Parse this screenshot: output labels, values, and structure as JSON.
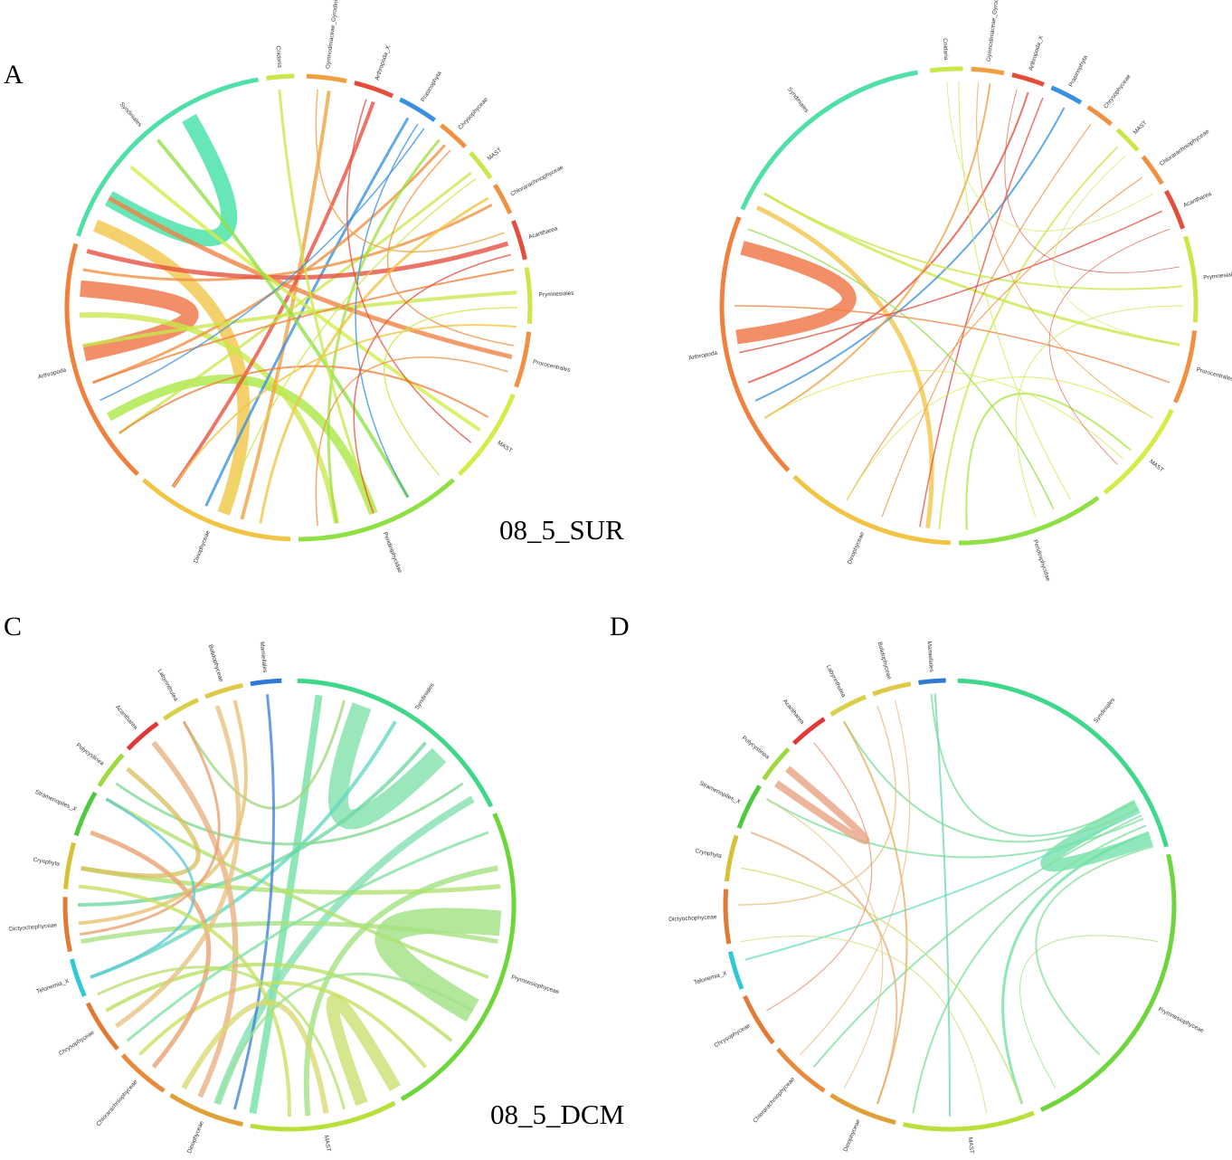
{
  "labels": {
    "panel_a": "A",
    "panel_c": "C",
    "panel_d": "D",
    "sample_top": "08_5_SUR",
    "sample_bottom": "08_5_DCM"
  },
  "panels": [
    {
      "id": "A",
      "sectors": [
        {
          "name": "Cnidaria",
          "start": -8,
          "end": -1,
          "color": "#c8e84a"
        },
        {
          "name": "Gymnodiniaceae_Gyrodinium",
          "start": 2,
          "end": 12,
          "color": "#f0a040"
        },
        {
          "name": "Arthropoda_X",
          "start": 14,
          "end": 24,
          "color": "#e54d3b"
        },
        {
          "name": "Prasinophyta",
          "start": 26,
          "end": 36,
          "color": "#3a8fe0"
        },
        {
          "name": "Chrysophyceae",
          "start": 38,
          "end": 46,
          "color": "#f09040"
        },
        {
          "name": "MAST",
          "start": 48,
          "end": 56,
          "color": "#c8e84a"
        },
        {
          "name": "Chlorarachniophyceae",
          "start": 58,
          "end": 66,
          "color": "#f09040"
        },
        {
          "name": "Acantharea",
          "start": 68,
          "end": 78,
          "color": "#e54d3b"
        },
        {
          "name": "Prymnesiales",
          "start": 80,
          "end": 94,
          "color": "#c8e84a"
        },
        {
          "name": "Prorocentrales",
          "start": 96,
          "end": 110,
          "color": "#f09040"
        },
        {
          "name": "MAST",
          "start": 112,
          "end": 136,
          "color": "#d4ec46"
        },
        {
          "name": "Peridiniphycidae",
          "start": 138,
          "end": 180,
          "color": "#8ee044"
        },
        {
          "name": "Dinophyceae",
          "start": 182,
          "end": 222,
          "color": "#f2c444"
        },
        {
          "name": "Arthropoda",
          "start": 224,
          "end": 286,
          "color": "#f0803e"
        },
        {
          "name": "Syndiniales",
          "start": 288,
          "end": 350,
          "color": "#4ee0a6"
        }
      ],
      "chords": [
        {
          "from": 300,
          "to": 330,
          "w": 18,
          "color": "#3ee0a2"
        },
        {
          "from": 258,
          "to": 275,
          "w": 18,
          "color": "#f0703e"
        },
        {
          "from": 292,
          "to": 200,
          "w": 14,
          "color": "#f2c444"
        },
        {
          "from": 240,
          "to": 160,
          "w": 10,
          "color": "#a8e840"
        },
        {
          "from": 268,
          "to": 170,
          "w": 6,
          "color": "#c8e84a"
        },
        {
          "from": 8,
          "to": 195,
          "w": 4,
          "color": "#f0a040"
        },
        {
          "from": 20,
          "to": 215,
          "w": 4,
          "color": "#e54d3b"
        },
        {
          "from": 30,
          "to": 205,
          "w": 3,
          "color": "#3a8fe0"
        },
        {
          "from": 42,
          "to": 250,
          "w": 3,
          "color": "#f09040"
        },
        {
          "from": 52,
          "to": 235,
          "w": 3,
          "color": "#c8e84a"
        },
        {
          "from": 62,
          "to": 280,
          "w": 3,
          "color": "#f09040"
        },
        {
          "from": 73,
          "to": 285,
          "w": 5,
          "color": "#e54d3b"
        },
        {
          "from": 86,
          "to": 260,
          "w": 4,
          "color": "#c8e84a"
        },
        {
          "from": 103,
          "to": 300,
          "w": 5,
          "color": "#f08040"
        },
        {
          "from": 124,
          "to": 310,
          "w": 4,
          "color": "#d4ec46"
        },
        {
          "from": 150,
          "to": 320,
          "w": 4,
          "color": "#8ee044"
        },
        {
          "from": 170,
          "to": 40,
          "w": 3,
          "color": "#a0e040"
        },
        {
          "from": 190,
          "to": 60,
          "w": 3,
          "color": "#f2c444"
        },
        {
          "from": 215,
          "to": 95,
          "w": 2,
          "color": "#f2c444"
        },
        {
          "from": 235,
          "to": 120,
          "w": 2,
          "color": "#f0803e"
        },
        {
          "from": 250,
          "to": 80,
          "w": 2,
          "color": "#f0803e"
        },
        {
          "from": -5,
          "to": 160,
          "w": 3,
          "color": "#c8e84a"
        },
        {
          "from": 33,
          "to": 150,
          "w": 1.5,
          "color": "#3a8fe0"
        },
        {
          "from": 35,
          "to": 245,
          "w": 1.5,
          "color": "#3a8fe0"
        },
        {
          "from": 18,
          "to": 128,
          "w": 1.5,
          "color": "#e54d3b"
        },
        {
          "from": 44,
          "to": 100,
          "w": 1.5,
          "color": "#f09040"
        },
        {
          "from": 5,
          "to": 70,
          "w": 1.5,
          "color": "#f0a040"
        },
        {
          "from": 54,
          "to": 200,
          "w": 1.5,
          "color": "#c8e84a"
        },
        {
          "from": 90,
          "to": 140,
          "w": 1.5,
          "color": "#c8e84a"
        },
        {
          "from": 107,
          "to": 175,
          "w": 1.5,
          "color": "#f09040"
        },
        {
          "from": 76,
          "to": 160,
          "w": 1.5,
          "color": "#e54d3b"
        }
      ]
    },
    {
      "id": "B",
      "sectors": [
        {
          "name": "Cnidaria",
          "start": -7,
          "end": 1,
          "color": "#c8e84a"
        },
        {
          "name": "Gymnodiniaceae_Gyrodinium",
          "start": 3,
          "end": 11,
          "color": "#f0a040"
        },
        {
          "name": "Arthropoda_X",
          "start": 13,
          "end": 21,
          "color": "#e54d3b"
        },
        {
          "name": "Prasinophyta",
          "start": 23,
          "end": 31,
          "color": "#3a8fe0"
        },
        {
          "name": "Chrysophyceae",
          "start": 33,
          "end": 40,
          "color": "#f09040"
        },
        {
          "name": "MAST",
          "start": 42,
          "end": 49,
          "color": "#c8e84a"
        },
        {
          "name": "Chlorarachniophyceae",
          "start": 51,
          "end": 59,
          "color": "#f09040"
        },
        {
          "name": "Acantharea",
          "start": 61,
          "end": 71,
          "color": "#e54d3b"
        },
        {
          "name": "Prymnesiales",
          "start": 73,
          "end": 94,
          "color": "#c8e84a"
        },
        {
          "name": "Prorocentrales",
          "start": 96,
          "end": 114,
          "color": "#f09040"
        },
        {
          "name": "MAST",
          "start": 116,
          "end": 142,
          "color": "#d4ec46"
        },
        {
          "name": "Peridiniphycidae",
          "start": 144,
          "end": 180,
          "color": "#8ee044"
        },
        {
          "name": "Dinophyceae",
          "start": 182,
          "end": 224,
          "color": "#f2c444"
        },
        {
          "name": "Arthropoda",
          "start": 226,
          "end": 292,
          "color": "#f0803e"
        },
        {
          "name": "Syndiniales",
          "start": 294,
          "end": 350,
          "color": "#4ee0a6"
        }
      ],
      "chords": [
        {
          "from": 262,
          "to": 285,
          "w": 16,
          "color": "#f0703e"
        },
        {
          "from": 296,
          "to": 188,
          "w": 5,
          "color": "#f2c444"
        },
        {
          "from": 300,
          "to": 100,
          "w": 3,
          "color": "#c8e84a"
        },
        {
          "from": 245,
          "to": 28,
          "w": 2,
          "color": "#3a8fe0"
        },
        {
          "from": 250,
          "to": 18,
          "w": 2,
          "color": "#e54d3b"
        },
        {
          "from": 240,
          "to": 8,
          "w": 2,
          "color": "#f0a040"
        },
        {
          "from": 185,
          "to": 45,
          "w": 2,
          "color": "#c8e84a"
        },
        {
          "from": 190,
          "to": 22,
          "w": 1.5,
          "color": "#e54d3b"
        },
        {
          "from": 178,
          "to": 130,
          "w": 2,
          "color": "#a8e840"
        },
        {
          "from": 155,
          "to": 290,
          "w": 1.5,
          "color": "#8ee044"
        },
        {
          "from": 110,
          "to": 270,
          "w": 1.5,
          "color": "#f08040"
        },
        {
          "from": 85,
          "to": 300,
          "w": 2,
          "color": "#c8e84a"
        },
        {
          "from": 65,
          "to": 258,
          "w": 1.5,
          "color": "#e54d3b"
        },
        {
          "from": 55,
          "to": 210,
          "w": 1.2,
          "color": "#f09040"
        },
        {
          "from": 36,
          "to": 200,
          "w": 1.2,
          "color": "#f09040"
        },
        {
          "from": 0,
          "to": 150,
          "w": 1,
          "color": "#c8e84a"
        },
        {
          "from": 5,
          "to": 120,
          "w": 1,
          "color": "#f0a040"
        },
        {
          "from": 120,
          "to": 210,
          "w": 1,
          "color": "#d4ec46"
        },
        {
          "from": 90,
          "to": 160,
          "w": 1,
          "color": "#c8e84a"
        },
        {
          "from": 133,
          "to": 240,
          "w": 1,
          "color": "#d4ec46"
        },
        {
          "from": 70,
          "to": 135,
          "w": 0.8,
          "color": "#e54d3b"
        },
        {
          "from": 15,
          "to": 80,
          "w": 0.8,
          "color": "#e54d3b"
        },
        {
          "from": 48,
          "to": 100,
          "w": 0.8,
          "color": "#c8e84a"
        },
        {
          "from": -3,
          "to": 60,
          "w": 0.8,
          "color": "#c8e84a"
        }
      ]
    },
    {
      "id": "C",
      "sectors": [
        {
          "name": "Syndiniales",
          "start": 2,
          "end": 64,
          "color": "#3fd88a"
        },
        {
          "name": "Prymnesiophyceae",
          "start": 66,
          "end": 150,
          "color": "#6ed63a"
        },
        {
          "name": "MAST",
          "start": 152,
          "end": 190,
          "color": "#b8e03a"
        },
        {
          "name": "Dinophyceae",
          "start": 192,
          "end": 212,
          "color": "#e0a038"
        },
        {
          "name": "Chlorarachniophyceae",
          "start": 214,
          "end": 228,
          "color": "#e88a3a"
        },
        {
          "name": "Chrysophyceae",
          "start": 230,
          "end": 244,
          "color": "#e07a36"
        },
        {
          "name": "Telonemia_X",
          "start": 246,
          "end": 256,
          "color": "#2ec8d8"
        },
        {
          "name": "Dictyochophyceae",
          "start": 258,
          "end": 272,
          "color": "#e07a36"
        },
        {
          "name": "Cryophyta",
          "start": 274,
          "end": 286,
          "color": "#d8c038"
        },
        {
          "name": "Stramenopiles_X",
          "start": 288,
          "end": 300,
          "color": "#50c840"
        },
        {
          "name": "Polycystinea",
          "start": 302,
          "end": 312,
          "color": "#a0d840"
        },
        {
          "name": "Acantharea",
          "start": 314,
          "end": 324,
          "color": "#e03838"
        },
        {
          "name": "Labyrinthulea",
          "start": 326,
          "end": 336,
          "color": "#d8d048"
        },
        {
          "name": "Bolidophyceae",
          "start": 338,
          "end": 348,
          "color": "#e0c848"
        },
        {
          "name": "Mamiellales",
          "start": 350,
          "end": 358,
          "color": "#2e78d8"
        }
      ],
      "chords": [
        {
          "from": 20,
          "to": 45,
          "w": 22,
          "color": "#7ee0a8"
        },
        {
          "from": 95,
          "to": 120,
          "w": 28,
          "color": "#9ee080"
        },
        {
          "from": 150,
          "to": 160,
          "w": 14,
          "color": "#c8e070"
        },
        {
          "from": 8,
          "to": 190,
          "w": 8,
          "color": "#70e0a0"
        },
        {
          "from": 60,
          "to": 200,
          "w": 8,
          "color": "#80e0b0"
        },
        {
          "from": 80,
          "to": 175,
          "w": 6,
          "color": "#a0e080"
        },
        {
          "from": 100,
          "to": 260,
          "w": 5,
          "color": "#a8e080"
        },
        {
          "from": 85,
          "to": 280,
          "w": 5,
          "color": "#b0e070"
        },
        {
          "from": 110,
          "to": 300,
          "w": 4,
          "color": "#b0e070"
        },
        {
          "from": 130,
          "to": 240,
          "w": 4,
          "color": "#b8e060"
        },
        {
          "from": 140,
          "to": 225,
          "w": 4,
          "color": "#c8e060"
        },
        {
          "from": 30,
          "to": 250,
          "w": 4,
          "color": "#60d8c0"
        },
        {
          "from": 40,
          "to": 270,
          "w": 4,
          "color": "#70d8a0"
        },
        {
          "from": 55,
          "to": 305,
          "w": 3,
          "color": "#80d890"
        },
        {
          "from": 15,
          "to": 330,
          "w": 3,
          "color": "#a0d880"
        },
        {
          "from": 205,
          "to": 320,
          "w": 6,
          "color": "#e8b080"
        },
        {
          "from": 220,
          "to": 290,
          "w": 5,
          "color": "#e8a070"
        },
        {
          "from": 235,
          "to": 340,
          "w": 5,
          "color": "#e8c080"
        },
        {
          "from": 265,
          "to": 345,
          "w": 4,
          "color": "#e8c070"
        },
        {
          "from": 280,
          "to": 310,
          "w": 5,
          "color": "#d8c060"
        },
        {
          "from": 262,
          "to": 330,
          "w": 3,
          "color": "#e8a070"
        },
        {
          "from": 250,
          "to": 300,
          "w": 3,
          "color": "#60c8d8"
        },
        {
          "from": 354,
          "to": 195,
          "w": 3,
          "color": "#4080d8"
        },
        {
          "from": 170,
          "to": 210,
          "w": 6,
          "color": "#d8d870"
        },
        {
          "from": 180,
          "to": 275,
          "w": 4,
          "color": "#c8e060"
        },
        {
          "from": 165,
          "to": 245,
          "w": 3,
          "color": "#b8e070"
        },
        {
          "from": 120,
          "to": 200,
          "w": 3,
          "color": "#a0e090"
        },
        {
          "from": 70,
          "to": 230,
          "w": 3,
          "color": "#80e0a0"
        }
      ]
    },
    {
      "id": "D",
      "sectors": [
        {
          "name": "Syndiniales",
          "start": 2,
          "end": 75,
          "color": "#3fd88a"
        },
        {
          "name": "Prymnesiophyceae",
          "start": 77,
          "end": 156,
          "color": "#6ed63a"
        },
        {
          "name": "MAST",
          "start": 158,
          "end": 192,
          "color": "#b8e03a"
        },
        {
          "name": "Dinophyceae",
          "start": 194,
          "end": 212,
          "color": "#e0a038"
        },
        {
          "name": "Chlorarachniophyceae",
          "start": 214,
          "end": 230,
          "color": "#e88a3a"
        },
        {
          "name": "Chrysophyceae",
          "start": 232,
          "end": 246,
          "color": "#e07a36"
        },
        {
          "name": "Telonemia_X",
          "start": 248,
          "end": 258,
          "color": "#2ec8d8"
        },
        {
          "name": "Dictyochophyceae",
          "start": 260,
          "end": 274,
          "color": "#e07a36"
        },
        {
          "name": "Cryophyta",
          "start": 276,
          "end": 288,
          "color": "#d8c038"
        },
        {
          "name": "Stramenopiles_X",
          "start": 290,
          "end": 302,
          "color": "#50c840"
        },
        {
          "name": "Polycystinea",
          "start": 304,
          "end": 314,
          "color": "#a0d840"
        },
        {
          "name": "Acantharea",
          "start": 316,
          "end": 326,
          "color": "#e03838"
        },
        {
          "name": "Labyrinthulea",
          "start": 328,
          "end": 338,
          "color": "#d8d048"
        },
        {
          "name": "Bolidophyceae",
          "start": 340,
          "end": 350,
          "color": "#e0c848"
        },
        {
          "name": "Mamiellales",
          "start": 352,
          "end": 359,
          "color": "#2e78d8"
        }
      ],
      "chords": [
        {
          "from": 72,
          "to": 62,
          "w": 14,
          "color": "#70e0a8"
        },
        {
          "from": 70,
          "to": 160,
          "w": 3,
          "color": "#70e0a0"
        },
        {
          "from": 68,
          "to": 190,
          "w": 2,
          "color": "#80e0a0"
        },
        {
          "from": 65,
          "to": 220,
          "w": 2,
          "color": "#80e0a0"
        },
        {
          "from": 64,
          "to": 255,
          "w": 2,
          "color": "#70e0c0"
        },
        {
          "from": 66,
          "to": 300,
          "w": 2,
          "color": "#80e0a0"
        },
        {
          "from": 63,
          "to": 330,
          "w": 2,
          "color": "#80e0a0"
        },
        {
          "from": 61,
          "to": 355,
          "w": 2,
          "color": "#80e0a0"
        },
        {
          "from": 74,
          "to": 135,
          "w": 2,
          "color": "#90e0a0"
        },
        {
          "from": 305,
          "to": 310,
          "w": 8,
          "color": "#e8a080"
        },
        {
          "from": 290,
          "to": 200,
          "w": 2,
          "color": "#e8b080"
        },
        {
          "from": 200,
          "to": 330,
          "w": 2,
          "color": "#e8b060"
        },
        {
          "from": 270,
          "to": 340,
          "w": 1.5,
          "color": "#e8c080"
        },
        {
          "from": 280,
          "to": 160,
          "w": 1.5,
          "color": "#c8e070"
        },
        {
          "from": 356,
          "to": 180,
          "w": 2,
          "color": "#70d8b0"
        },
        {
          "from": 345,
          "to": 225,
          "w": 1.2,
          "color": "#e8c080"
        },
        {
          "from": 240,
          "to": 320,
          "w": 1.2,
          "color": "#e89070"
        },
        {
          "from": 150,
          "to": 100,
          "w": 1,
          "color": "#a0e080"
        },
        {
          "from": 170,
          "to": 260,
          "w": 1,
          "color": "#c8e070"
        },
        {
          "from": 210,
          "to": 300,
          "w": 1,
          "color": "#e0c070"
        }
      ]
    }
  ]
}
